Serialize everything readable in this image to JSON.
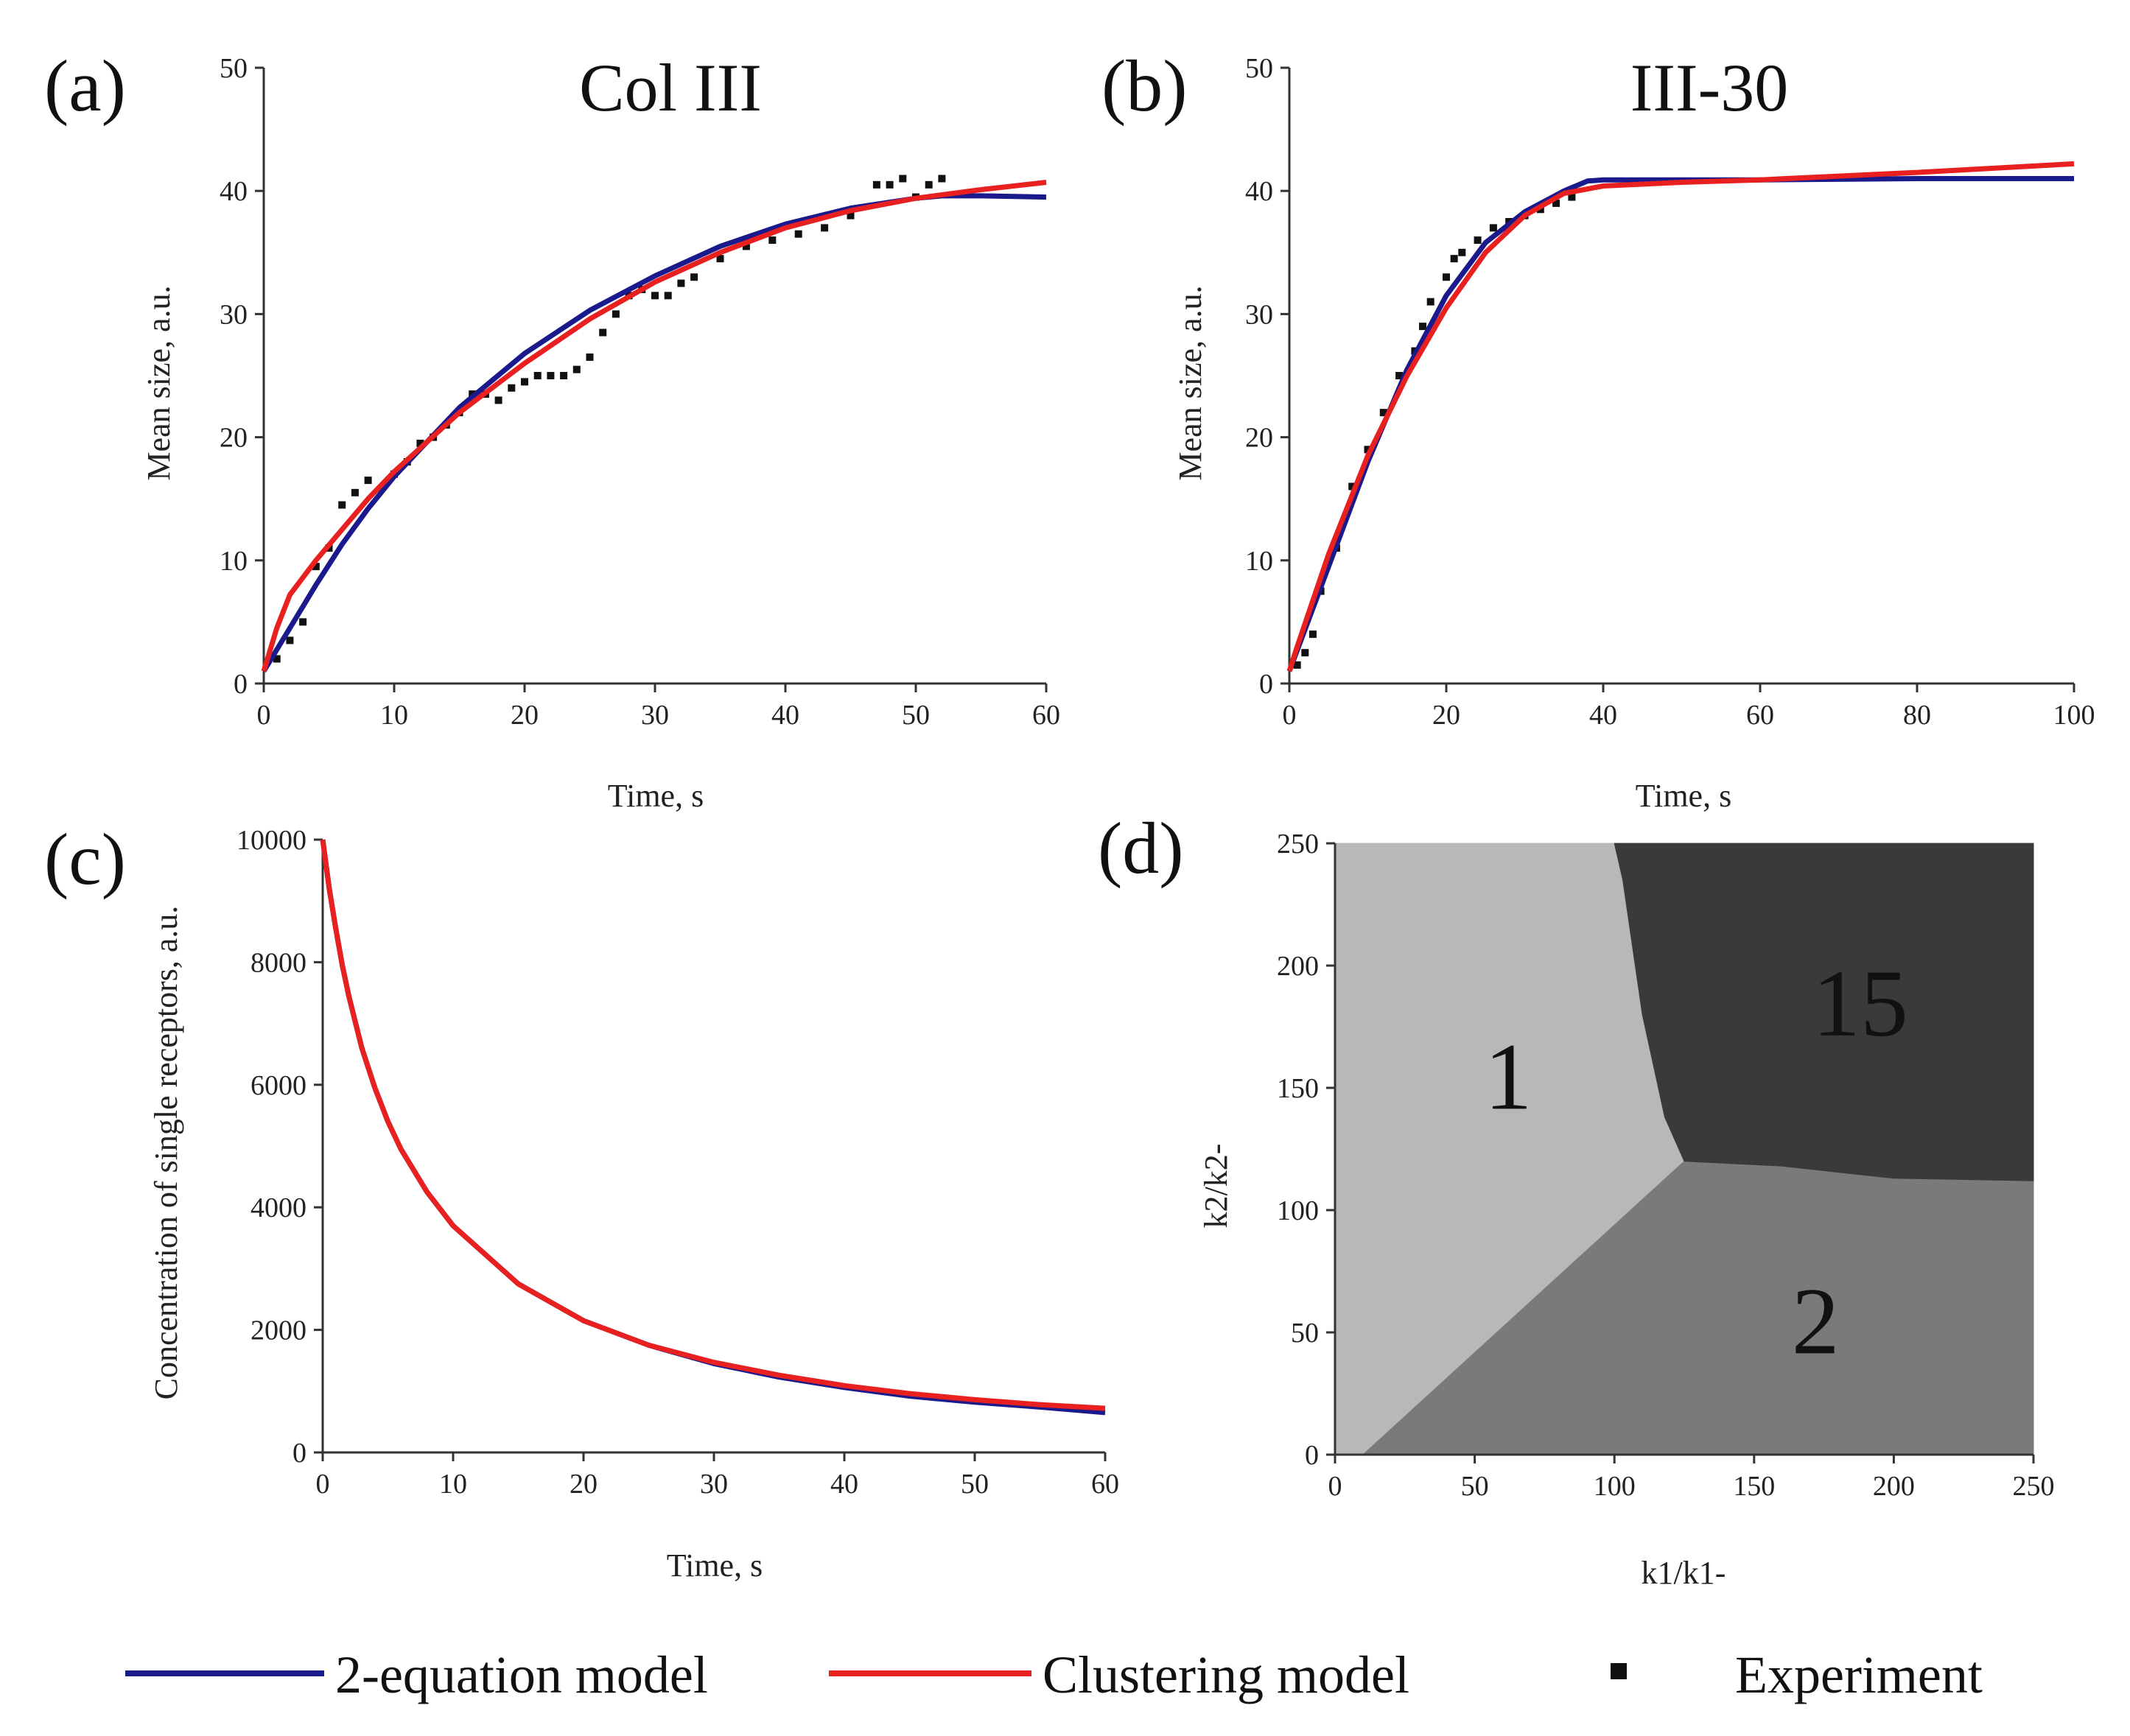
{
  "chart_data": [
    {
      "id": "a",
      "type": "line",
      "panel_label": "(a)",
      "title": "Col III",
      "xlabel": "Time, s",
      "ylabel": "Mean size, a.u.",
      "xlim": [
        0,
        60
      ],
      "ylim": [
        0,
        50
      ],
      "xticks": [
        0,
        10,
        20,
        30,
        40,
        50,
        60
      ],
      "yticks": [
        0,
        10,
        20,
        30,
        40,
        50
      ],
      "series": [
        {
          "name": "2-equation model",
          "color": "#1a1a8c",
          "x": [
            0,
            2,
            4,
            6,
            8,
            10,
            15,
            20,
            25,
            30,
            35,
            40,
            45,
            50,
            52,
            55,
            60
          ],
          "y": [
            1.0,
            4.5,
            8.0,
            11.3,
            14.2,
            16.8,
            22.4,
            26.8,
            30.3,
            33.1,
            35.5,
            37.3,
            38.6,
            39.4,
            39.6,
            39.6,
            39.5
          ]
        },
        {
          "name": "Clustering model",
          "color": "#e82020",
          "x": [
            0,
            1,
            2,
            4,
            6,
            8,
            10,
            15,
            20,
            25,
            30,
            35,
            40,
            45,
            50,
            55,
            60
          ],
          "y": [
            1.0,
            4.5,
            7.2,
            10.0,
            12.5,
            15.0,
            17.2,
            22.0,
            26.0,
            29.6,
            32.6,
            35.0,
            37.0,
            38.4,
            39.4,
            40.1,
            40.7
          ]
        },
        {
          "name": "Experiment",
          "color": "#111111",
          "x": [
            1,
            2,
            3,
            4,
            5,
            6,
            7,
            8,
            10,
            11,
            12,
            13,
            14,
            15,
            16,
            17,
            18,
            19,
            20,
            21,
            22,
            23,
            24,
            25,
            26,
            27,
            28,
            29,
            30,
            31,
            32,
            33,
            35,
            37,
            39,
            41,
            43,
            45,
            47,
            48,
            49,
            50,
            51,
            52
          ],
          "y": [
            2,
            3.5,
            5,
            9.5,
            11,
            14.5,
            15.5,
            16.5,
            17,
            18,
            19.5,
            20,
            21,
            22,
            23.5,
            23.5,
            23,
            24,
            24.5,
            25,
            25,
            25,
            25.5,
            26.5,
            28.5,
            30,
            31.5,
            32,
            31.5,
            31.5,
            32.5,
            33,
            34.5,
            35.5,
            36,
            36.5,
            37,
            38,
            40.5,
            40.5,
            41,
            39.5,
            40.5,
            41
          ]
        }
      ]
    },
    {
      "id": "b",
      "type": "line",
      "panel_label": "(b)",
      "title": "III-30",
      "xlabel": "Time, s",
      "ylabel": "Mean size, a.u.",
      "xlim": [
        0,
        100
      ],
      "ylim": [
        0,
        50
      ],
      "xticks": [
        0,
        20,
        40,
        60,
        80,
        100
      ],
      "yticks": [
        0,
        10,
        20,
        30,
        40,
        50
      ],
      "series": [
        {
          "name": "2-equation model",
          "color": "#1a1a8c",
          "x": [
            0,
            5,
            10,
            15,
            20,
            25,
            30,
            35,
            38,
            40,
            50,
            60,
            80,
            100
          ],
          "y": [
            1.0,
            9.5,
            18.0,
            25.5,
            31.5,
            35.8,
            38.3,
            40.0,
            40.8,
            40.9,
            40.9,
            40.9,
            41.0,
            41.0
          ]
        },
        {
          "name": "Clustering model",
          "color": "#e82020",
          "x": [
            0,
            1,
            5,
            10,
            15,
            20,
            25,
            30,
            35,
            40,
            50,
            60,
            80,
            100
          ],
          "y": [
            1.0,
            3.0,
            10.5,
            18.5,
            25.0,
            30.5,
            35.0,
            38.0,
            39.8,
            40.4,
            40.7,
            40.9,
            41.5,
            42.2
          ]
        },
        {
          "name": "Experiment",
          "color": "#111111",
          "x": [
            1,
            2,
            3,
            4,
            6,
            8,
            10,
            12,
            14,
            16,
            17,
            18,
            20,
            21,
            22,
            24,
            26,
            28,
            30,
            32,
            34,
            36
          ],
          "y": [
            1.5,
            2.5,
            4,
            7.5,
            11,
            16,
            19,
            22,
            25,
            27,
            29,
            31,
            33,
            34.5,
            35,
            36,
            37,
            37.5,
            38,
            38.5,
            39,
            39.5
          ]
        }
      ]
    },
    {
      "id": "c",
      "type": "line",
      "panel_label": "(c)",
      "xlabel": "Time, s",
      "ylabel": "Concentration of single receptors, a.u.",
      "xlim": [
        0,
        60
      ],
      "ylim": [
        0,
        10000
      ],
      "xticks": [
        0,
        10,
        20,
        30,
        40,
        50,
        60
      ],
      "yticks": [
        0,
        2000,
        4000,
        6000,
        8000,
        10000
      ],
      "series": [
        {
          "name": "2-equation model",
          "color": "#1a1a8c",
          "x": [
            0,
            0.5,
            1,
            1.5,
            2,
            3,
            4,
            5,
            6,
            8,
            10,
            15,
            20,
            25,
            30,
            35,
            40,
            45,
            50,
            55,
            60
          ],
          "y": [
            10000,
            9200,
            8550,
            7950,
            7450,
            6600,
            5950,
            5400,
            4950,
            4250,
            3700,
            2750,
            2150,
            1750,
            1450,
            1230,
            1060,
            920,
            820,
            740,
            650
          ]
        },
        {
          "name": "Clustering model",
          "color": "#e82020",
          "x": [
            0,
            0.5,
            1,
            1.5,
            2,
            3,
            4,
            5,
            6,
            8,
            10,
            15,
            20,
            25,
            30,
            35,
            40,
            45,
            50,
            55,
            60
          ],
          "y": [
            10000,
            9200,
            8550,
            7950,
            7450,
            6600,
            5950,
            5400,
            4950,
            4250,
            3700,
            2750,
            2150,
            1750,
            1470,
            1260,
            1090,
            960,
            860,
            780,
            720
          ]
        }
      ]
    },
    {
      "id": "d",
      "type": "heatmap",
      "panel_label": "(d)",
      "xlabel": "k1/k1-",
      "ylabel": "k2/k2-",
      "xlim": [
        0,
        250
      ],
      "ylim": [
        0,
        250
      ],
      "xticks": [
        0,
        50,
        100,
        150,
        200,
        250
      ],
      "yticks": [
        0,
        50,
        100,
        150,
        200,
        250
      ],
      "regions": [
        {
          "label": "1",
          "color": "#b8b8b8",
          "label_at": [
            62,
            155
          ],
          "polygon": [
            [
              0,
              0
            ],
            [
              10,
              0
            ],
            [
              125,
              120
            ],
            [
              118,
              138
            ],
            [
              110,
              180
            ],
            [
              103,
              235
            ],
            [
              100,
              250
            ],
            [
              0,
              250
            ]
          ]
        },
        {
          "label": "2",
          "color": "#7a7a7a",
          "label_at": [
            172,
            55
          ],
          "polygon": [
            [
              10,
              0
            ],
            [
              250,
              0
            ],
            [
              250,
              112
            ],
            [
              200,
              113
            ],
            [
              160,
              118
            ],
            [
              125,
              120
            ]
          ]
        },
        {
          "label": "15",
          "color": "#3a3a3a",
          "label_at": [
            188,
            185
          ],
          "polygon": [
            [
              100,
              250
            ],
            [
              250,
              250
            ],
            [
              250,
              112
            ],
            [
              200,
              113
            ],
            [
              160,
              118
            ],
            [
              125,
              120
            ],
            [
              118,
              138
            ],
            [
              110,
              180
            ],
            [
              103,
              235
            ]
          ]
        }
      ]
    }
  ],
  "legend": [
    {
      "label": "2-equation model",
      "kind": "line",
      "color": "#1a1a8c"
    },
    {
      "label": "Clustering model",
      "kind": "line",
      "color": "#e82020"
    },
    {
      "label": "Experiment",
      "kind": "marker",
      "color": "#111111"
    }
  ]
}
